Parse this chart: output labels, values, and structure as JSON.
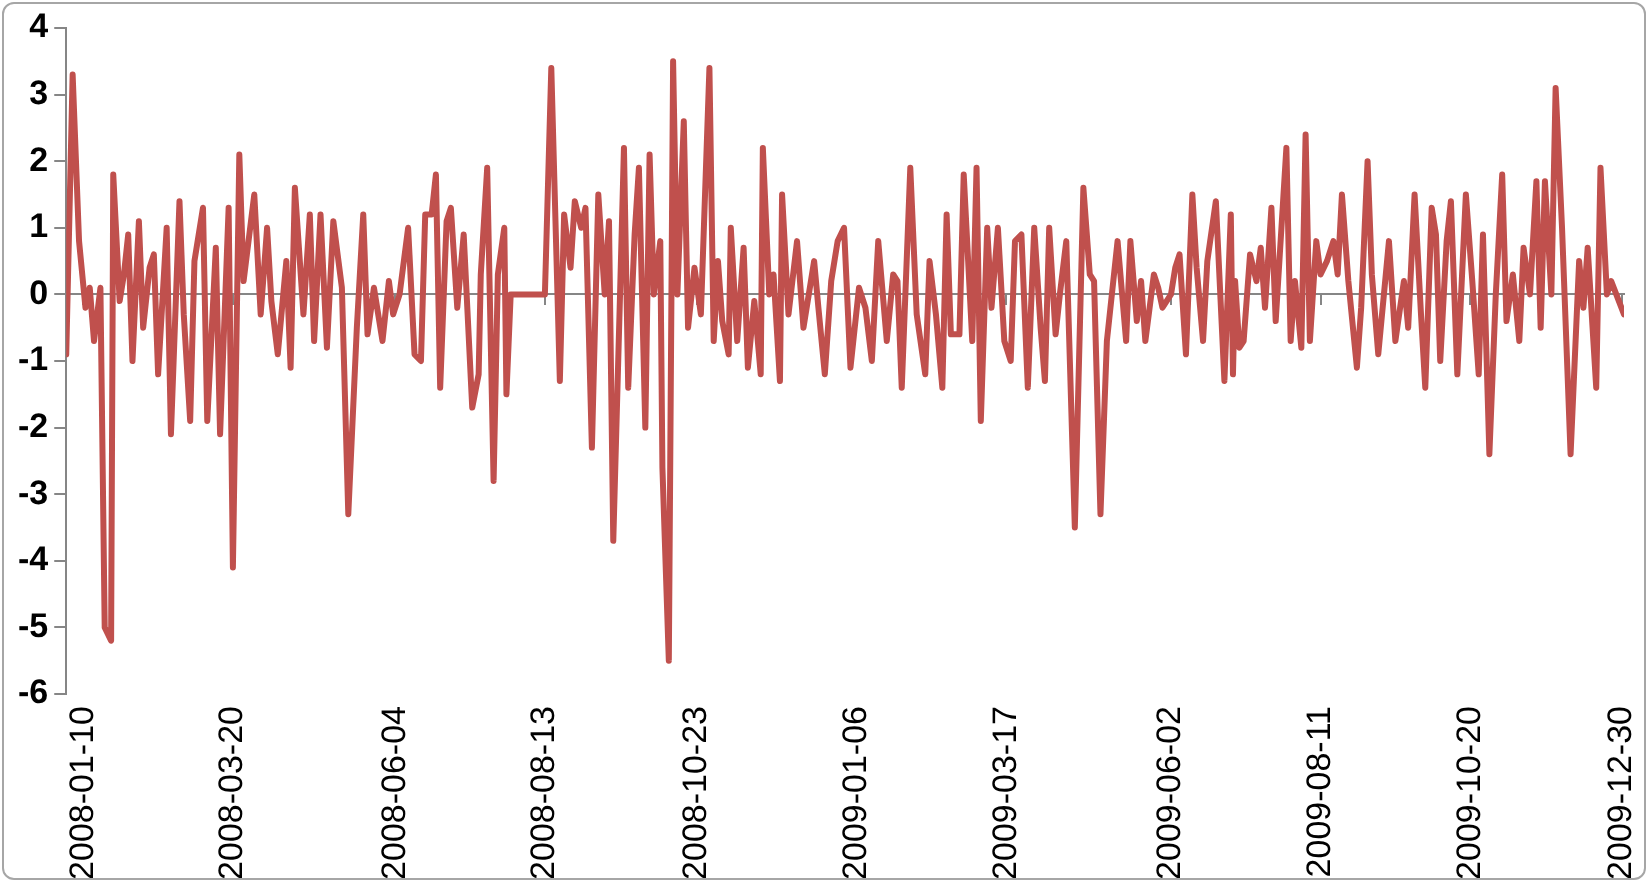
{
  "chart_data": {
    "type": "line",
    "color": "#c0504d",
    "xlim": [
      "2008-01-02",
      "2009-12-31"
    ],
    "xticks": [
      "2008-01-10",
      "2008-03-20",
      "2008-06-04",
      "2008-08-13",
      "2008-10-23",
      "2009-01-06",
      "2009-03-17",
      "2009-06-02",
      "2009-08-11",
      "2009-10-20",
      "2009-12-30"
    ],
    "ylim": [
      -6,
      4
    ],
    "yticks": [
      -6,
      -5,
      -4,
      -3,
      -2,
      -1,
      0,
      1,
      2,
      3,
      4
    ],
    "x": [
      "2008-01-02",
      "2008-01-05",
      "2008-01-08",
      "2008-01-11",
      "2008-01-13",
      "2008-01-15",
      "2008-01-18",
      "2008-01-20",
      "2008-01-23",
      "2008-01-24",
      "2008-01-27",
      "2008-01-29",
      "2008-01-31",
      "2008-02-02",
      "2008-02-05",
      "2008-02-07",
      "2008-02-10",
      "2008-02-12",
      "2008-02-14",
      "2008-02-18",
      "2008-02-20",
      "2008-02-24",
      "2008-02-26",
      "2008-02-29",
      "2008-03-02",
      "2008-03-06",
      "2008-03-08",
      "2008-03-12",
      "2008-03-14",
      "2008-03-18",
      "2008-03-20",
      "2008-03-23",
      "2008-03-25",
      "2008-03-30",
      "2008-04-02",
      "2008-04-05",
      "2008-04-07",
      "2008-04-10",
      "2008-04-14",
      "2008-04-16",
      "2008-04-18",
      "2008-04-22",
      "2008-04-25",
      "2008-04-27",
      "2008-04-30",
      "2008-05-03",
      "2008-05-06",
      "2008-05-10",
      "2008-05-13",
      "2008-05-17",
      "2008-05-20",
      "2008-05-22",
      "2008-05-25",
      "2008-05-29",
      "2008-06-01",
      "2008-06-03",
      "2008-06-06",
      "2008-06-10",
      "2008-06-13",
      "2008-06-16",
      "2008-06-18",
      "2008-06-21",
      "2008-06-23",
      "2008-06-25",
      "2008-06-28",
      "2008-06-30",
      "2008-07-03",
      "2008-07-06",
      "2008-07-10",
      "2008-07-13",
      "2008-07-14",
      "2008-07-17",
      "2008-07-20",
      "2008-07-22",
      "2008-07-25",
      "2008-07-26",
      "2008-07-28",
      "2008-08-13",
      "2008-08-16",
      "2008-08-20",
      "2008-08-22",
      "2008-08-25",
      "2008-08-27",
      "2008-08-30",
      "2008-09-01",
      "2008-09-04",
      "2008-09-07",
      "2008-09-10",
      "2008-09-12",
      "2008-09-14",
      "2008-09-17",
      "2008-09-19",
      "2008-09-21",
      "2008-09-24",
      "2008-09-26",
      "2008-09-29",
      "2008-10-01",
      "2008-10-03",
      "2008-10-06",
      "2008-10-07",
      "2008-10-10",
      "2008-10-12",
      "2008-10-14",
      "2008-10-17",
      "2008-10-19",
      "2008-10-22",
      "2008-10-25",
      "2008-10-29",
      "2008-10-31",
      "2008-11-02",
      "2008-11-04",
      "2008-11-07",
      "2008-11-08",
      "2008-11-11",
      "2008-11-14",
      "2008-11-16",
      "2008-11-19",
      "2008-11-22",
      "2008-11-23",
      "2008-11-26",
      "2008-11-28",
      "2008-12-01",
      "2008-12-02",
      "2008-12-05",
      "2008-12-09",
      "2008-12-12",
      "2008-12-17",
      "2008-12-19",
      "2008-12-22",
      "2008-12-25",
      "2008-12-28",
      "2008-12-31",
      "2009-01-03",
      "2009-01-07",
      "2009-01-10",
      "2009-01-13",
      "2009-01-16",
      "2009-01-20",
      "2009-01-23",
      "2009-01-25",
      "2009-01-27",
      "2009-01-31",
      "2009-02-03",
      "2009-02-07",
      "2009-02-09",
      "2009-02-12",
      "2009-02-15",
      "2009-02-17",
      "2009-02-19",
      "2009-02-23",
      "2009-02-25",
      "2009-03-01",
      "2009-03-03",
      "2009-03-05",
      "2009-03-08",
      "2009-03-10",
      "2009-03-13",
      "2009-03-16",
      "2009-03-19",
      "2009-03-21",
      "2009-03-24",
      "2009-03-27",
      "2009-03-30",
      "2009-04-02",
      "2009-04-04",
      "2009-04-06",
      "2009-04-09",
      "2009-04-11",
      "2009-04-14",
      "2009-04-18",
      "2009-04-22",
      "2009-04-25",
      "2009-04-27",
      "2009-04-30",
      "2009-05-03",
      "2009-05-08",
      "2009-05-12",
      "2009-05-14",
      "2009-05-17",
      "2009-05-19",
      "2009-05-21",
      "2009-05-25",
      "2009-05-27",
      "2009-05-29",
      "2009-06-02",
      "2009-06-04",
      "2009-06-06",
      "2009-06-09",
      "2009-06-12",
      "2009-06-14",
      "2009-06-17",
      "2009-06-19",
      "2009-06-23",
      "2009-06-27",
      "2009-06-30",
      "2009-07-01",
      "2009-07-02",
      "2009-07-04",
      "2009-07-06",
      "2009-07-09",
      "2009-07-12",
      "2009-07-14",
      "2009-07-16",
      "2009-07-19",
      "2009-07-21",
      "2009-07-26",
      "2009-07-28",
      "2009-07-30",
      "2009-08-02",
      "2009-08-04",
      "2009-08-06",
      "2009-08-09",
      "2009-08-11",
      "2009-08-14",
      "2009-08-17",
      "2009-08-19",
      "2009-08-21",
      "2009-08-24",
      "2009-08-28",
      "2009-08-30",
      "2009-09-02",
      "2009-09-04",
      "2009-09-07",
      "2009-09-12",
      "2009-09-15",
      "2009-09-19",
      "2009-09-21",
      "2009-09-24",
      "2009-09-27",
      "2009-09-29",
      "2009-10-02",
      "2009-10-04",
      "2009-10-06",
      "2009-10-09",
      "2009-10-11",
      "2009-10-14",
      "2009-10-18",
      "2009-10-21",
      "2009-10-24",
      "2009-10-26",
      "2009-10-29",
      "2009-11-01",
      "2009-11-04",
      "2009-11-06",
      "2009-11-09",
      "2009-11-12",
      "2009-11-14",
      "2009-11-17",
      "2009-11-20",
      "2009-11-22",
      "2009-11-24",
      "2009-11-27",
      "2009-11-29",
      "2009-12-02",
      "2009-12-06",
      "2009-12-10",
      "2009-12-12",
      "2009-12-14",
      "2009-12-18",
      "2009-12-20",
      "2009-12-23",
      "2009-12-25",
      "2009-12-31"
    ],
    "values": [
      -0.9,
      3.3,
      0.8,
      -0.2,
      0.1,
      -0.7,
      0.1,
      -5.0,
      -5.2,
      1.8,
      -0.1,
      0.3,
      0.9,
      -1.0,
      1.1,
      -0.5,
      0.4,
      0.6,
      -1.2,
      1.0,
      -2.1,
      1.4,
      -0.3,
      -1.9,
      0.5,
      1.3,
      -1.9,
      0.7,
      -2.1,
      1.3,
      -4.1,
      2.1,
      0.2,
      1.5,
      -0.3,
      1.0,
      -0.1,
      -0.9,
      0.5,
      -1.1,
      1.6,
      -0.3,
      1.2,
      -0.7,
      1.2,
      -0.8,
      1.1,
      0.1,
      -3.3,
      -0.5,
      1.2,
      -0.6,
      0.1,
      -0.7,
      0.2,
      -0.3,
      0.0,
      1.0,
      -0.9,
      -1.0,
      1.2,
      1.2,
      1.8,
      -1.4,
      1.1,
      1.3,
      -0.2,
      0.9,
      -1.7,
      -1.2,
      0.3,
      1.9,
      -2.8,
      0.3,
      1.0,
      -1.5,
      0.0,
      0.0,
      3.4,
      -1.3,
      1.2,
      0.4,
      1.4,
      1.0,
      1.3,
      -2.3,
      1.5,
      0.0,
      1.1,
      -3.7,
      -0.2,
      2.2,
      -1.4,
      0.9,
      1.9,
      -2.0,
      2.1,
      0.0,
      0.8,
      -2.6,
      -5.5,
      3.5,
      0.0,
      2.6,
      -0.5,
      0.4,
      -0.3,
      3.4,
      -0.7,
      0.5,
      -0.4,
      -0.9,
      1.0,
      -0.7,
      0.7,
      -1.1,
      -0.1,
      -1.2,
      2.2,
      0.0,
      0.3,
      -1.3,
      1.5,
      -0.3,
      0.8,
      -0.5,
      0.5,
      -0.2,
      -1.2,
      0.2,
      0.8,
      1.0,
      -1.1,
      0.1,
      -0.2,
      -1.0,
      0.8,
      -0.7,
      0.3,
      0.2,
      -1.4,
      1.9,
      -0.3,
      -1.2,
      0.5,
      -0.3,
      -1.4,
      1.2,
      -0.6,
      -0.6,
      1.8,
      -0.7,
      1.9,
      -1.9,
      1.0,
      -0.2,
      1.0,
      -0.7,
      -1.0,
      0.8,
      0.9,
      -1.4,
      1.0,
      -0.5,
      -1.3,
      1.0,
      -0.6,
      0.0,
      0.8,
      -3.5,
      1.6,
      0.3,
      0.2,
      -3.3,
      -0.7,
      0.8,
      -0.7,
      0.8,
      -0.4,
      0.2,
      -0.7,
      0.3,
      0.1,
      -0.2,
      0.0,
      0.4,
      0.6,
      -0.9,
      1.5,
      0.4,
      -0.7,
      0.5,
      1.4,
      -1.3,
      1.2,
      -1.2,
      0.2,
      -0.8,
      -0.7,
      0.6,
      0.2,
      0.7,
      -0.2,
      1.3,
      -0.4,
      2.2,
      -0.7,
      0.2,
      -0.8,
      2.4,
      -0.7,
      0.8,
      0.3,
      0.5,
      0.8,
      0.3,
      1.5,
      0.2,
      -1.1,
      -0.2,
      2.0,
      0.3,
      -0.9,
      0.8,
      -0.7,
      0.2,
      -0.5,
      1.5,
      -0.3,
      -1.4,
      1.3,
      0.9,
      -1.0,
      0.8,
      1.4,
      -1.2,
      1.5,
      0.2,
      -1.2,
      0.9,
      -2.4,
      0.0,
      1.8,
      -0.4,
      0.3,
      -0.7,
      0.7,
      0.0,
      1.7,
      -0.5,
      1.7,
      0.0,
      3.1,
      1.0,
      -2.4,
      0.5,
      -0.2,
      0.7,
      -1.4,
      1.9,
      0.0,
      0.2,
      -0.3
    ]
  }
}
